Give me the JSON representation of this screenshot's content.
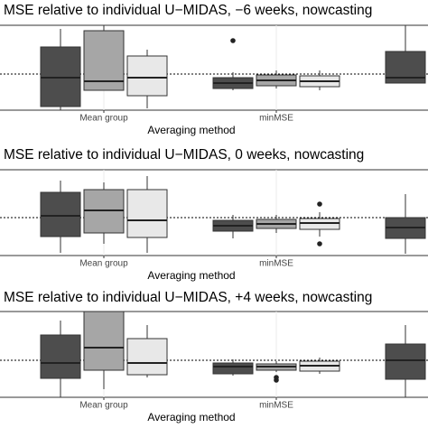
{
  "chart_data": [
    {
      "type": "box",
      "title": "MSE relative to individual U−MIDAS, −6 weeks, nowcasting",
      "xlabel": "Averaging method",
      "categories": [
        "Mean group",
        "minMSE",
        null
      ],
      "ylim": [
        0.6,
        1.54
      ],
      "refline": 1,
      "series": [
        {
          "color": "#4d4d4d",
          "values": [
            {
              "min": 0.6,
              "q1": 0.64,
              "median": 0.96,
              "q3": 1.3,
              "max": 1.5,
              "outliers": []
            },
            {
              "min": 0.82,
              "q1": 0.84,
              "median": 0.9,
              "q3": 0.96,
              "max": 1.02,
              "outliers": [
                1.37
              ]
            },
            {
              "min": 0.9,
              "q1": 0.9,
              "median": 0.96,
              "q3": 1.25,
              "max": 1.54,
              "outliers": []
            }
          ]
        },
        {
          "color": "#a6a6a6",
          "values": [
            {
              "min": 0.82,
              "q1": 0.82,
              "median": 0.92,
              "q3": 1.48,
              "max": 1.54,
              "outliers": []
            },
            {
              "min": 0.84,
              "q1": 0.87,
              "median": 0.93,
              "q3": 0.99,
              "max": 1.04,
              "outliers": []
            },
            null
          ]
        },
        {
          "color": "#e8e8e8",
          "values": [
            {
              "min": 0.62,
              "q1": 0.76,
              "median": 0.96,
              "q3": 1.2,
              "max": 1.27,
              "outliers": []
            },
            {
              "min": 0.82,
              "q1": 0.86,
              "median": 0.92,
              "q3": 0.98,
              "max": 1.04,
              "outliers": []
            },
            null
          ]
        }
      ]
    },
    {
      "type": "box",
      "title": "MSE relative to individual U−MIDAS, 0 weeks, nowcasting",
      "xlabel": "Averaging method",
      "categories": [
        "Mean group",
        "minMSE",
        null
      ],
      "ylim": [
        0.58,
        1.53
      ],
      "refline": 1,
      "series": [
        {
          "color": "#4d4d4d",
          "values": [
            {
              "min": 0.61,
              "q1": 0.79,
              "median": 1.02,
              "q3": 1.28,
              "max": 1.41,
              "outliers": []
            },
            {
              "min": 0.77,
              "q1": 0.85,
              "median": 0.91,
              "q3": 0.97,
              "max": 1.03,
              "outliers": []
            },
            {
              "min": 0.6,
              "q1": 0.77,
              "median": 0.89,
              "q3": 1.0,
              "max": 1.26,
              "outliers": []
            }
          ]
        },
        {
          "color": "#a6a6a6",
          "values": [
            {
              "min": 0.71,
              "q1": 0.83,
              "median": 1.08,
              "q3": 1.31,
              "max": 1.39,
              "outliers": []
            },
            {
              "min": 0.83,
              "q1": 0.88,
              "median": 0.93,
              "q3": 0.98,
              "max": 1.03,
              "outliers": []
            },
            null
          ]
        },
        {
          "color": "#e8e8e8",
          "values": [
            {
              "min": 0.61,
              "q1": 0.78,
              "median": 0.97,
              "q3": 1.31,
              "max": 1.46,
              "outliers": []
            },
            {
              "min": 0.79,
              "q1": 0.87,
              "median": 0.94,
              "q3": 0.99,
              "max": 1.06,
              "outliers": [
                1.15,
                0.71
              ]
            },
            null
          ]
        }
      ]
    },
    {
      "type": "box",
      "title": "MSE relative to individual U−MIDAS, +4 weeks, nowcasting",
      "xlabel": "Averaging method",
      "categories": [
        "Mean group",
        "minMSE",
        null
      ],
      "ylim": [
        0.59,
        1.54
      ],
      "refline": 1,
      "series": [
        {
          "color": "#4d4d4d",
          "values": [
            {
              "min": 0.59,
              "q1": 0.8,
              "median": 0.97,
              "q3": 1.28,
              "max": 1.44,
              "outliers": []
            },
            {
              "min": 0.83,
              "q1": 0.85,
              "median": 0.93,
              "q3": 0.97,
              "max": 1.01,
              "outliers": []
            },
            {
              "min": 0.59,
              "q1": 0.79,
              "median": 1.0,
              "q3": 1.18,
              "max": 1.39,
              "outliers": []
            }
          ]
        },
        {
          "color": "#a6a6a6",
          "values": [
            {
              "min": 0.68,
              "q1": 0.89,
              "median": 1.14,
              "q3": 1.54,
              "max": 1.54,
              "outliers": []
            },
            {
              "min": 0.87,
              "q1": 0.89,
              "median": 0.93,
              "q3": 0.96,
              "max": 0.99,
              "outliers": [
                0.81,
                0.78
              ]
            },
            null
          ]
        },
        {
          "color": "#e8e8e8",
          "values": [
            {
              "min": 0.81,
              "q1": 0.84,
              "median": 0.97,
              "q3": 1.24,
              "max": 1.39,
              "outliers": []
            },
            {
              "min": 0.85,
              "q1": 0.88,
              "median": 0.94,
              "q3": 0.99,
              "max": 1.03,
              "outliers": []
            },
            null
          ]
        }
      ]
    }
  ]
}
